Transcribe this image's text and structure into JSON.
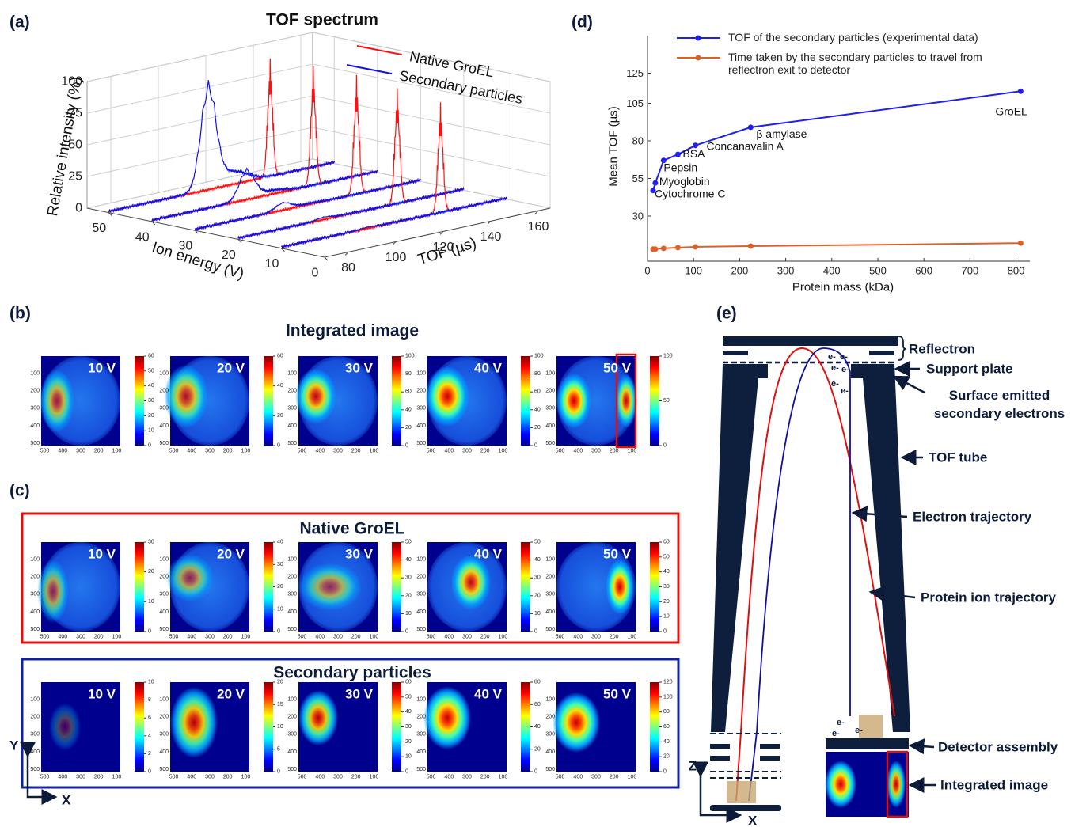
{
  "panel_labels": [
    "(a)",
    "(b)",
    "(c)",
    "(d)",
    "(e)"
  ],
  "chart_data": [
    {
      "type": "waterfall",
      "title": "TOF spectrum",
      "y_label": "Relative intensity (%)",
      "z_label": "Ion energy (V)",
      "x_label": "TOF (µs)",
      "xlim": [
        70,
        165
      ],
      "xticks": [
        80,
        100,
        120,
        140,
        160
      ],
      "ylim": [
        0,
        100
      ],
      "yticks": [
        0,
        25,
        50,
        75,
        100
      ],
      "zlim": [
        0,
        55
      ],
      "zticks": [
        0,
        10,
        20,
        30,
        40,
        50
      ],
      "energies": [
        10,
        20,
        30,
        40,
        50
      ],
      "series": [
        {
          "name": "Native GroEL",
          "color": "#ff1010",
          "peak_tof": [
            137,
            137,
            138,
            138,
            138
          ],
          "peak_intensity": [
            88,
            92,
            95,
            95,
            94
          ]
        },
        {
          "name": "Secondary particles",
          "color": "#1010e0",
          "peak_tof": [
            106,
            106,
            107,
            110,
            112
          ],
          "peak_intensity": [
            2,
            3,
            7,
            25,
            85
          ]
        }
      ],
      "grid": true
    },
    {
      "type": "line",
      "x_label": "Protein mass (kDa)",
      "y_label": "Mean TOF (µs)",
      "x": [
        12,
        17,
        35,
        66,
        104,
        224,
        810
      ],
      "xlim": [
        0,
        830
      ],
      "xticks": [
        0,
        100,
        200,
        300,
        400,
        500,
        600,
        700,
        800
      ],
      "ylim": [
        0,
        150
      ],
      "yticks": [
        30,
        55,
        80,
        105,
        125
      ],
      "point_labels": [
        "Cytochrome C",
        "Myoglobin",
        "Pepsin",
        "BSA",
        "Concanavalin A",
        "β amylase",
        "GroEL"
      ],
      "series": [
        {
          "name": "TOF of the secondary particles (experimental data)",
          "color": "#1f1ff0",
          "values": [
            47,
            52,
            67,
            71,
            77,
            89,
            113
          ]
        },
        {
          "name": "Time taken by the secondary particles to travel from reflectron exit to detector",
          "color": "#d9622b",
          "values": [
            8,
            8,
            8.5,
            9,
            9.5,
            10,
            12
          ]
        }
      ],
      "legend": "upper left"
    }
  ],
  "images": {
    "voltages": [
      "10 V",
      "20 V",
      "30 V",
      "40 V",
      "50 V"
    ],
    "axis_yticks": [
      100,
      200,
      300,
      400,
      500
    ],
    "axis_xticks": [
      500,
      400,
      300,
      200,
      100
    ],
    "axis_ylim": [
      0,
      512
    ],
    "axis_xlim": [
      520,
      80
    ],
    "axis_labels": [
      "Y",
      "X"
    ],
    "rows": [
      {
        "title": "Integrated image",
        "colorbar_ticks": [
          [
            0,
            10,
            20,
            30,
            40,
            50,
            60
          ],
          [
            0,
            20,
            40,
            60
          ],
          [
            0,
            20,
            40,
            60,
            80,
            100
          ],
          [
            0,
            20,
            40,
            60,
            80,
            100
          ],
          [
            0,
            50,
            100
          ]
        ]
      },
      {
        "title": "Native GroEL",
        "colorbar_ticks": [
          [
            0,
            10,
            20,
            30
          ],
          [
            0,
            10,
            20,
            30,
            40
          ],
          [
            0,
            10,
            20,
            30,
            40,
            50
          ],
          [
            0,
            10,
            20,
            30,
            40,
            50
          ],
          [
            0,
            10,
            20,
            30,
            40,
            50,
            60
          ]
        ]
      },
      {
        "title": "Secondary particles",
        "colorbar_ticks": [
          [
            0,
            2,
            4,
            6,
            8,
            10
          ],
          [
            0,
            5,
            10,
            15,
            20
          ],
          [
            0,
            10,
            20,
            30,
            40,
            50,
            60
          ],
          [
            0,
            20,
            40,
            60,
            80
          ],
          [
            0,
            20,
            40,
            60,
            80,
            100,
            120
          ]
        ]
      }
    ]
  },
  "diagram": {
    "labels": [
      "Reflectron",
      "Support plate",
      "Surface emitted secondary electrons",
      "TOF tube",
      "Electron trajectory",
      "Protein ion trajectory",
      "Detector assembly",
      "Integrated image"
    ],
    "electron": "e-",
    "axis_labels": [
      "Z",
      "X"
    ]
  }
}
